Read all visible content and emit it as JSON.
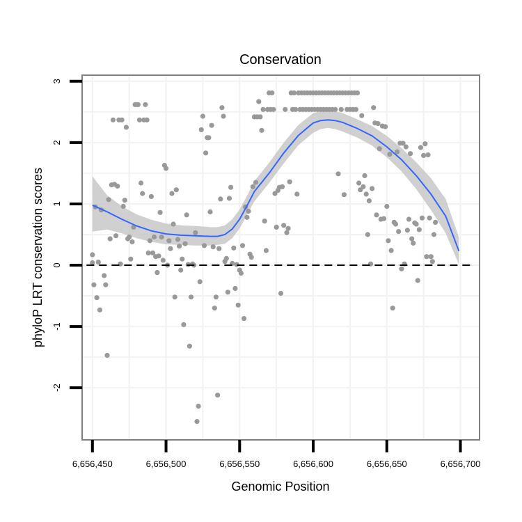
{
  "colors": {
    "background": "#ffffff",
    "panel_border": "#7f7f7f",
    "grid": "#f2f2f2",
    "point": "#999999",
    "smooth_line": "#3366ff",
    "ribbon": "#c8c8c8",
    "reference_line": "#000000",
    "tick": "#000000"
  },
  "chart_data": {
    "type": "scatter",
    "title": "Conservation",
    "xlabel": "Genomic Position",
    "ylabel": "phyloP LRT conservation scores",
    "xlim": [
      6656443,
      6656713
    ],
    "ylim": [
      -2.85,
      3.1
    ],
    "x_ticks": [
      {
        "value": 6656450,
        "label": "6,656,450"
      },
      {
        "value": 6656500,
        "label": "6,656,500"
      },
      {
        "value": 6656550,
        "label": "6,656,550"
      },
      {
        "value": 6656600,
        "label": "6,656,600"
      },
      {
        "value": 6656650,
        "label": "6,656,650"
      },
      {
        "value": 6656700,
        "label": "6,656,700"
      }
    ],
    "y_ticks": [
      {
        "value": -2,
        "label": "-2"
      },
      {
        "value": -1,
        "label": "-1"
      },
      {
        "value": 0,
        "label": "0"
      },
      {
        "value": 1,
        "label": "1"
      },
      {
        "value": 2,
        "label": "2"
      },
      {
        "value": 3,
        "label": "3"
      }
    ],
    "reference_line": {
      "y": 0,
      "style": "dashed"
    },
    "smooth": {
      "x": [
        6656450,
        6656460,
        6656470,
        6656480,
        6656490,
        6656500,
        6656510,
        6656520,
        6656530,
        6656535,
        6656540,
        6656545,
        6656550,
        6656555,
        6656560,
        6656570,
        6656580,
        6656590,
        6656600,
        6656605,
        6656610,
        6656615,
        6656620,
        6656630,
        6656640,
        6656650,
        6656660,
        6656670,
        6656680,
        6656690,
        6656699
      ],
      "y": [
        0.98,
        0.87,
        0.75,
        0.64,
        0.56,
        0.51,
        0.49,
        0.48,
        0.47,
        0.47,
        0.5,
        0.59,
        0.75,
        0.97,
        1.2,
        1.5,
        1.83,
        2.12,
        2.32,
        2.36,
        2.37,
        2.36,
        2.33,
        2.23,
        2.11,
        1.93,
        1.72,
        1.46,
        1.16,
        0.8,
        0.23
      ],
      "lower": [
        0.55,
        0.58,
        0.52,
        0.44,
        0.38,
        0.34,
        0.33,
        0.32,
        0.32,
        0.33,
        0.35,
        0.44,
        0.6,
        0.82,
        1.04,
        1.34,
        1.66,
        1.96,
        2.16,
        2.22,
        2.24,
        2.22,
        2.18,
        2.08,
        1.95,
        1.76,
        1.53,
        1.24,
        0.9,
        0.52,
        0.01
      ],
      "upper": [
        1.45,
        1.14,
        0.96,
        0.83,
        0.74,
        0.68,
        0.65,
        0.64,
        0.62,
        0.62,
        0.65,
        0.75,
        0.91,
        1.13,
        1.37,
        1.67,
        2.0,
        2.29,
        2.48,
        2.51,
        2.51,
        2.51,
        2.48,
        2.38,
        2.27,
        2.11,
        1.91,
        1.68,
        1.42,
        1.08,
        0.45
      ]
    },
    "points": [
      [
        6656450,
        0.17
      ],
      [
        6656450,
        0.04
      ],
      [
        6656451,
        -0.32
      ],
      [
        6656452,
        0.95
      ],
      [
        6656453,
        -0.53
      ],
      [
        6656454,
        0.05
      ],
      [
        6656455,
        -0.73
      ],
      [
        6656456,
        0.9
      ],
      [
        6656458,
        -0.17
      ],
      [
        6656459,
        -0.32
      ],
      [
        6656460,
        -1.47
      ],
      [
        6656461,
        1.07
      ],
      [
        6656462,
        0.43
      ],
      [
        6656463,
        1.31
      ],
      [
        6656464,
        2.37
      ],
      [
        6656465,
        1.32
      ],
      [
        6656466,
        0.48
      ],
      [
        6656467,
        1.29
      ],
      [
        6656468,
        2.37
      ],
      [
        6656469,
        0.02
      ],
      [
        6656470,
        2.37
      ],
      [
        6656471,
        0.96
      ],
      [
        6656472,
        1.06
      ],
      [
        6656473,
        2.25
      ],
      [
        6656474,
        0.43
      ],
      [
        6656475,
        0.46
      ],
      [
        6656476,
        0.1
      ],
      [
        6656477,
        0.38
      ],
      [
        6656478,
        0.62
      ],
      [
        6656479,
        2.62
      ],
      [
        6656480,
        2.62
      ],
      [
        6656481,
        2.62
      ],
      [
        6656482,
        2.37
      ],
      [
        6656483,
        1.34
      ],
      [
        6656484,
        1.17
      ],
      [
        6656485,
        2.37
      ],
      [
        6656486,
        2.62
      ],
      [
        6656487,
        2.37
      ],
      [
        6656488,
        0.2
      ],
      [
        6656489,
        0.4
      ],
      [
        6656490,
        1.12
      ],
      [
        6656491,
        0.2
      ],
      [
        6656492,
        0.46
      ],
      [
        6656493,
        0.14
      ],
      [
        6656494,
        -0.12
      ],
      [
        6656495,
        0.15
      ],
      [
        6656496,
        0.86
      ],
      [
        6656497,
        0.46
      ],
      [
        6656498,
        0.08
      ],
      [
        6656499,
        1.63
      ],
      [
        6656500,
        1.58
      ],
      [
        6656501,
        0.0
      ],
      [
        6656502,
        0.4
      ],
      [
        6656503,
        0.27
      ],
      [
        6656504,
        1.17
      ],
      [
        6656505,
        0.67
      ],
      [
        6656506,
        -0.52
      ],
      [
        6656507,
        1.23
      ],
      [
        6656508,
        0.42
      ],
      [
        6656509,
        0.31
      ],
      [
        6656510,
        -0.08
      ],
      [
        6656511,
        0.1
      ],
      [
        6656512,
        -0.97
      ],
      [
        6656513,
        0.35
      ],
      [
        6656514,
        0.82
      ],
      [
        6656515,
        0.01
      ],
      [
        6656516,
        -1.32
      ],
      [
        6656517,
        -0.52
      ],
      [
        6656518,
        0.02
      ],
      [
        6656519,
        0.0
      ],
      [
        6656520,
        0.53
      ],
      [
        6656521,
        -2.55
      ],
      [
        6656522,
        -2.3
      ],
      [
        6656523,
        -0.27
      ],
      [
        6656524,
        2.21
      ],
      [
        6656525,
        2.43
      ],
      [
        6656526,
        0.32
      ],
      [
        6656527,
        1.83
      ],
      [
        6656528,
        2.08
      ],
      [
        6656529,
        2.08
      ],
      [
        6656530,
        0.87
      ],
      [
        6656531,
        2.28
      ],
      [
        6656532,
        0.3
      ],
      [
        6656533,
        -0.7
      ],
      [
        6656534,
        -0.52
      ],
      [
        6656535,
        -2.12
      ],
      [
        6656536,
        0.27
      ],
      [
        6656537,
        1.08
      ],
      [
        6656538,
        2.57
      ],
      [
        6656539,
        2.43
      ],
      [
        6656540,
        0.06
      ],
      [
        6656541,
        0.11
      ],
      [
        6656542,
        -0.44
      ],
      [
        6656543,
        1.09
      ],
      [
        6656544,
        1.27
      ],
      [
        6656545,
        0.03
      ],
      [
        6656546,
        0.28
      ],
      [
        6656547,
        -0.38
      ],
      [
        6656548,
        0.01
      ],
      [
        6656549,
        -0.65
      ],
      [
        6656550,
        -0.08
      ],
      [
        6656551,
        -0.13
      ],
      [
        6656552,
        0.32
      ],
      [
        6656553,
        -0.87
      ],
      [
        6656554,
        0.95
      ],
      [
        6656555,
        0.78
      ],
      [
        6656556,
        0.88
      ],
      [
        6656557,
        0.18
      ],
      [
        6656558,
        0.13
      ],
      [
        6656559,
        1.28
      ],
      [
        6656560,
        2.42
      ],
      [
        6656561,
        1.35
      ],
      [
        6656562,
        2.42
      ],
      [
        6656563,
        2.67
      ],
      [
        6656564,
        2.42
      ],
      [
        6656565,
        2.2
      ],
      [
        6656566,
        2.54
      ],
      [
        6656567,
        0.72
      ],
      [
        6656568,
        0.24
      ],
      [
        6656569,
        2.54
      ],
      [
        6656570,
        2.81
      ],
      [
        6656571,
        2.54
      ],
      [
        6656572,
        2.81
      ],
      [
        6656573,
        2.54
      ],
      [
        6656574,
        1.17
      ],
      [
        6656575,
        0.62
      ],
      [
        6656576,
        1.22
      ],
      [
        6656577,
        1.27
      ],
      [
        6656578,
        -0.46
      ],
      [
        6656579,
        1.28
      ],
      [
        6656580,
        0.65
      ],
      [
        6656581,
        2.54
      ],
      [
        6656582,
        0.53
      ],
      [
        6656583,
        0.6
      ],
      [
        6656584,
        1.36
      ],
      [
        6656585,
        2.81
      ],
      [
        6656586,
        2.54
      ],
      [
        6656587,
        2.81
      ],
      [
        6656588,
        2.54
      ],
      [
        6656589,
        1.16
      ],
      [
        6656590,
        2.81
      ],
      [
        6656591,
        2.54
      ],
      [
        6656592,
        2.81
      ],
      [
        6656593,
        2.54
      ],
      [
        6656594,
        2.81
      ],
      [
        6656595,
        2.54
      ],
      [
        6656596,
        2.81
      ],
      [
        6656597,
        2.54
      ],
      [
        6656598,
        2.81
      ],
      [
        6656599,
        2.54
      ],
      [
        6656600,
        2.81
      ],
      [
        6656601,
        2.54
      ],
      [
        6656602,
        2.81
      ],
      [
        6656603,
        2.54
      ],
      [
        6656604,
        2.81
      ],
      [
        6656605,
        2.54
      ],
      [
        6656606,
        2.81
      ],
      [
        6656607,
        2.54
      ],
      [
        6656608,
        2.81
      ],
      [
        6656609,
        2.54
      ],
      [
        6656610,
        2.81
      ],
      [
        6656611,
        2.54
      ],
      [
        6656612,
        2.81
      ],
      [
        6656613,
        2.54
      ],
      [
        6656614,
        2.81
      ],
      [
        6656615,
        2.54
      ],
      [
        6656616,
        2.81
      ],
      [
        6656617,
        1.49
      ],
      [
        6656618,
        2.81
      ],
      [
        6656619,
        2.54
      ],
      [
        6656620,
        2.81
      ],
      [
        6656621,
        1.15
      ],
      [
        6656622,
        2.81
      ],
      [
        6656623,
        2.54
      ],
      [
        6656624,
        2.81
      ],
      [
        6656625,
        2.54
      ],
      [
        6656626,
        2.81
      ],
      [
        6656627,
        2.54
      ],
      [
        6656628,
        2.81
      ],
      [
        6656629,
        2.54
      ],
      [
        6656630,
        2.81
      ],
      [
        6656631,
        1.34
      ],
      [
        6656632,
        1.23
      ],
      [
        6656633,
        2.44
      ],
      [
        6656634,
        1.28
      ],
      [
        6656635,
        1.46
      ],
      [
        6656636,
        1.16
      ],
      [
        6656637,
        0.5
      ],
      [
        6656638,
        1.05
      ],
      [
        6656639,
        0.02
      ],
      [
        6656640,
        1.25
      ],
      [
        6656641,
        2.57
      ],
      [
        6656642,
        2.32
      ],
      [
        6656643,
        0.82
      ],
      [
        6656644,
        2.31
      ],
      [
        6656645,
        1.9
      ],
      [
        6656646,
        0.75
      ],
      [
        6656647,
        2.27
      ],
      [
        6656648,
        0.76
      ],
      [
        6656649,
        2.26
      ],
      [
        6656650,
        0.96
      ],
      [
        6656651,
        0.4
      ],
      [
        6656652,
        1.81
      ],
      [
        6656653,
        0.24
      ],
      [
        6656654,
        -0.7
      ],
      [
        6656655,
        0.7
      ],
      [
        6656656,
        0.67
      ],
      [
        6656657,
        1.85
      ],
      [
        6656658,
        0.55
      ],
      [
        6656659,
        1.99
      ],
      [
        6656660,
        -0.06
      ],
      [
        6656661,
        1.99
      ],
      [
        6656662,
        0.02
      ],
      [
        6656663,
        1.93
      ],
      [
        6656664,
        0.57
      ],
      [
        6656665,
        0.75
      ],
      [
        6656666,
        1.82
      ],
      [
        6656667,
        0.43
      ],
      [
        6656668,
        0.36
      ],
      [
        6656669,
        0.69
      ],
      [
        6656670,
        0.67
      ],
      [
        6656671,
        -0.25
      ],
      [
        6656672,
        0.58
      ],
      [
        6656673,
        1.92
      ],
      [
        6656674,
        0.77
      ],
      [
        6656675,
        1.79
      ],
      [
        6656676,
        1.98
      ],
      [
        6656677,
        0.14
      ],
      [
        6656678,
        1.8
      ],
      [
        6656679,
        0.77
      ],
      [
        6656680,
        0.14
      ],
      [
        6656681,
        0.06
      ],
      [
        6656682,
        0.5
      ],
      [
        6656683,
        0.7
      ]
    ]
  }
}
